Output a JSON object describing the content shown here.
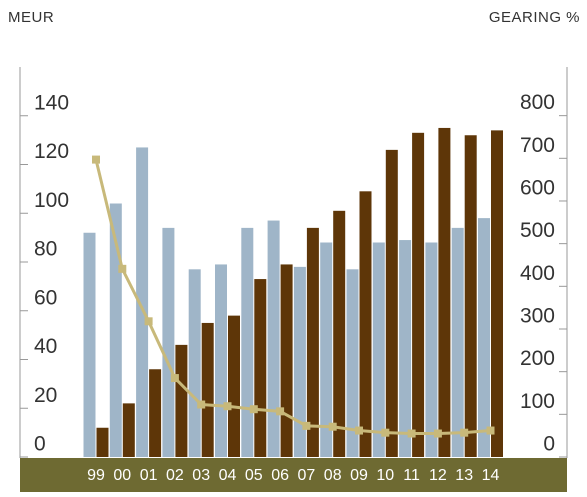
{
  "chart_data": {
    "type": "bar",
    "ylabel": "MEUR",
    "y2label": "GEARING %",
    "categories": [
      "99",
      "00",
      "01",
      "02",
      "03",
      "04",
      "05",
      "06",
      "07",
      "08",
      "09",
      "10",
      "11",
      "12",
      "13",
      "14"
    ],
    "series": [
      {
        "type": "bar",
        "color": "#9fb5c8",
        "values": [
          92,
          104,
          127,
          94,
          77,
          79,
          94,
          97,
          78,
          88,
          77,
          88,
          89,
          88,
          94,
          98
        ]
      },
      {
        "type": "bar",
        "color": "#5e3608",
        "values": [
          12,
          22,
          36,
          46,
          55,
          58,
          73,
          79,
          94,
          101,
          109,
          126,
          133,
          135,
          132,
          134
        ]
      },
      {
        "type": "line",
        "axis": "y2",
        "color": "#c8b97a",
        "values": [
          697,
          441,
          318,
          185,
          123,
          119,
          112,
          107,
          73,
          71,
          62,
          57,
          55,
          55,
          57,
          62
        ]
      }
    ],
    "ylim": [
      0,
      160
    ],
    "yticks": [
      0,
      20,
      40,
      60,
      80,
      100,
      120,
      140
    ],
    "y2lim": [
      0,
      914
    ],
    "y2ticks": [
      0,
      100,
      200,
      300,
      400,
      500,
      600,
      700,
      800
    ]
  }
}
